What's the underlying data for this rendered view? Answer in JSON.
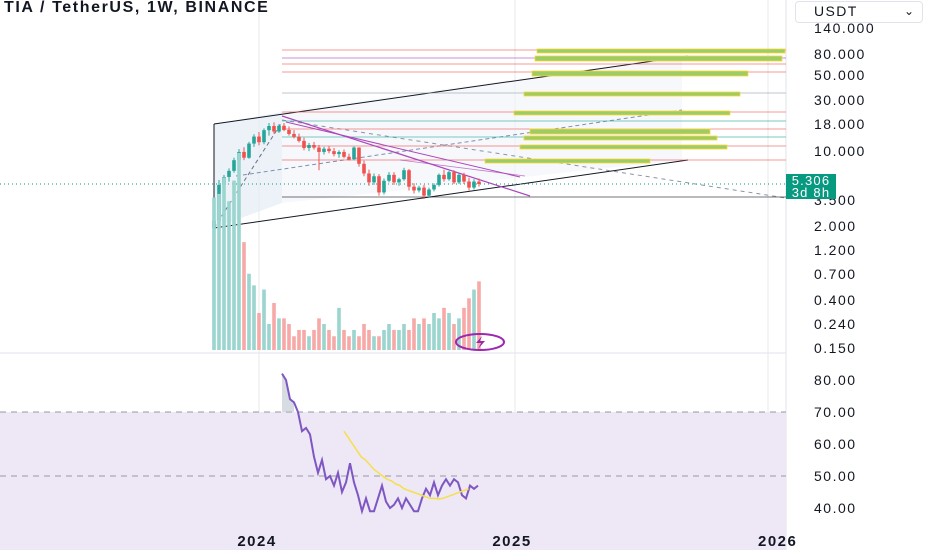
{
  "title": "TIA / TetherUS, 1W, BINANCE",
  "currency": "USDT",
  "currency_icon": "chevron-down-icon",
  "last_price": "5.306",
  "countdown": "3d 8h",
  "colors": {
    "up": "#26a69a",
    "down": "#ef5350",
    "rsi": "#7e57c2",
    "rsi_ma": "#f5e04a",
    "rsi_band": "#ede7f6",
    "price_tag": "#089981",
    "channel": "#131722",
    "target": "#9ccc65",
    "target_edge": "#fdd835"
  },
  "chart_data": [
    {
      "type": "candlestick",
      "title": "TIA / TetherUS, 1W, BINANCE",
      "scale": "log",
      "y_ticks": [
        "140.000",
        "80.000",
        "50.000",
        "30.000",
        "18.000",
        "10.000",
        "3.500",
        "2.000",
        "1.200",
        "0.700",
        "0.400",
        "0.240",
        "0.150"
      ],
      "x_ticks": [
        "2024",
        "2025",
        "2026"
      ],
      "last_price": 5.306,
      "candles": [
        [
          2.0,
          2.4,
          1.95,
          2.35
        ],
        [
          2.35,
          5.8,
          2.3,
          5.2
        ],
        [
          5.2,
          6.5,
          4.6,
          6.2
        ],
        [
          6.2,
          7.5,
          5.6,
          7.1
        ],
        [
          7.1,
          9.5,
          6.8,
          9.0
        ],
        [
          9.0,
          11.5,
          8.2,
          10.8
        ],
        [
          10.8,
          12.0,
          9.0,
          9.5
        ],
        [
          9.5,
          13.5,
          9.3,
          13.0
        ],
        [
          13.0,
          16.0,
          12.1,
          15.2
        ],
        [
          15.2,
          16.8,
          12.5,
          13.4
        ],
        [
          13.4,
          18.2,
          12.8,
          17.5
        ],
        [
          17.5,
          20.5,
          15.5,
          19.2
        ],
        [
          19.2,
          20.8,
          16.2,
          17.0
        ],
        [
          17.0,
          20.0,
          16.5,
          19.3
        ],
        [
          19.3,
          20.5,
          17.1,
          17.6
        ],
        [
          17.6,
          19.0,
          15.5,
          16.1
        ],
        [
          16.1,
          17.5,
          14.6,
          15.1
        ],
        [
          15.1,
          16.2,
          13.3,
          13.8
        ],
        [
          13.8,
          14.8,
          11.2,
          11.8
        ],
        [
          11.8,
          13.2,
          11.0,
          12.6
        ],
        [
          12.6,
          13.5,
          11.4,
          11.9
        ],
        [
          11.9,
          12.6,
          7.2,
          10.8
        ],
        [
          10.8,
          12.1,
          10.2,
          11.6
        ],
        [
          11.6,
          12.3,
          10.5,
          11.0
        ],
        [
          11.0,
          11.8,
          9.8,
          10.3
        ],
        [
          10.3,
          11.2,
          9.5,
          10.8
        ],
        [
          10.8,
          11.4,
          9.4,
          9.7
        ],
        [
          9.7,
          10.4,
          8.9,
          9.2
        ],
        [
          9.2,
          12.2,
          9.0,
          11.9
        ],
        [
          11.9,
          12.0,
          7.8,
          8.3
        ],
        [
          8.3,
          8.9,
          6.3,
          6.7
        ],
        [
          6.7,
          7.3,
          5.1,
          5.5
        ],
        [
          5.5,
          6.7,
          5.2,
          6.3
        ],
        [
          6.3,
          6.6,
          4.1,
          4.4
        ],
        [
          4.4,
          6.0,
          4.2,
          5.7
        ],
        [
          5.7,
          6.9,
          5.5,
          6.5
        ],
        [
          6.5,
          6.9,
          5.2,
          5.5
        ],
        [
          5.5,
          6.1,
          5.1,
          5.9
        ],
        [
          5.9,
          7.6,
          5.7,
          7.2
        ],
        [
          7.2,
          7.4,
          4.6,
          5.0
        ],
        [
          5.0,
          5.4,
          4.3,
          4.6
        ],
        [
          4.6,
          5.1,
          4.4,
          4.9
        ],
        [
          4.9,
          5.2,
          3.8,
          4.1
        ],
        [
          4.1,
          4.9,
          3.9,
          4.7
        ],
        [
          4.7,
          5.4,
          4.5,
          5.2
        ],
        [
          5.2,
          6.7,
          5.0,
          6.5
        ],
        [
          6.5,
          7.3,
          5.6,
          5.9
        ],
        [
          5.9,
          7.1,
          5.7,
          6.9
        ],
        [
          6.9,
          7.2,
          5.3,
          5.5
        ],
        [
          5.5,
          6.7,
          5.3,
          6.5
        ],
        [
          6.5,
          6.8,
          5.3,
          5.6
        ],
        [
          5.6,
          6.1,
          4.6,
          4.9
        ],
        [
          4.9,
          5.9,
          4.7,
          5.6
        ],
        [
          5.6,
          6.0,
          5.0,
          5.306
        ]
      ],
      "volume": [
        0.6,
        0.62,
        0.72,
        0.58,
        0.7,
        0.9,
        0.4,
        0.3,
        0.27,
        0.21,
        0.26,
        0.19,
        0.23,
        0.2,
        0.2,
        0.19,
        0.17,
        0.18,
        0.18,
        0.17,
        0.18,
        0.2,
        0.19,
        0.18,
        0.17,
        0.22,
        0.18,
        0.17,
        0.18,
        0.17,
        0.19,
        0.18,
        0.17,
        0.17,
        0.18,
        0.19,
        0.18,
        0.18,
        0.19,
        0.18,
        0.2,
        0.19,
        0.2,
        0.19,
        0.21,
        0.2,
        0.22,
        0.21,
        0.19,
        0.2,
        0.22,
        0.24,
        0.26,
        0.28
      ],
      "volume_ticks": [
        "0.700",
        "0.400",
        "0.240",
        "0.150"
      ]
    },
    {
      "type": "line",
      "title": "",
      "ylim": [
        35,
        88
      ],
      "y_ticks": [
        "80.00",
        "70.00",
        "60.00",
        "50.00",
        "40.00"
      ],
      "bands": [
        70,
        50
      ],
      "series": [
        {
          "values": [
            82,
            80,
            74,
            73,
            70,
            64,
            65,
            63,
            56,
            51,
            55,
            49,
            50,
            47,
            51,
            45,
            48,
            54,
            48,
            44,
            39,
            43,
            39,
            39,
            43,
            47,
            42,
            40,
            41,
            43,
            40,
            43,
            41,
            39,
            39,
            43,
            46,
            44,
            48,
            44,
            47,
            49,
            47,
            49,
            48,
            44,
            43,
            47,
            46,
            47
          ]
        },
        {
          "values": [
            64,
            62,
            60,
            58,
            56,
            55,
            53.5,
            52,
            51,
            50,
            49,
            48.5,
            47.5,
            47,
            46,
            45.5,
            45,
            44.5,
            44,
            43.5,
            43,
            43,
            42.8,
            43,
            43.5,
            44,
            44.5,
            45,
            45.5,
            46
          ]
        }
      ]
    }
  ]
}
